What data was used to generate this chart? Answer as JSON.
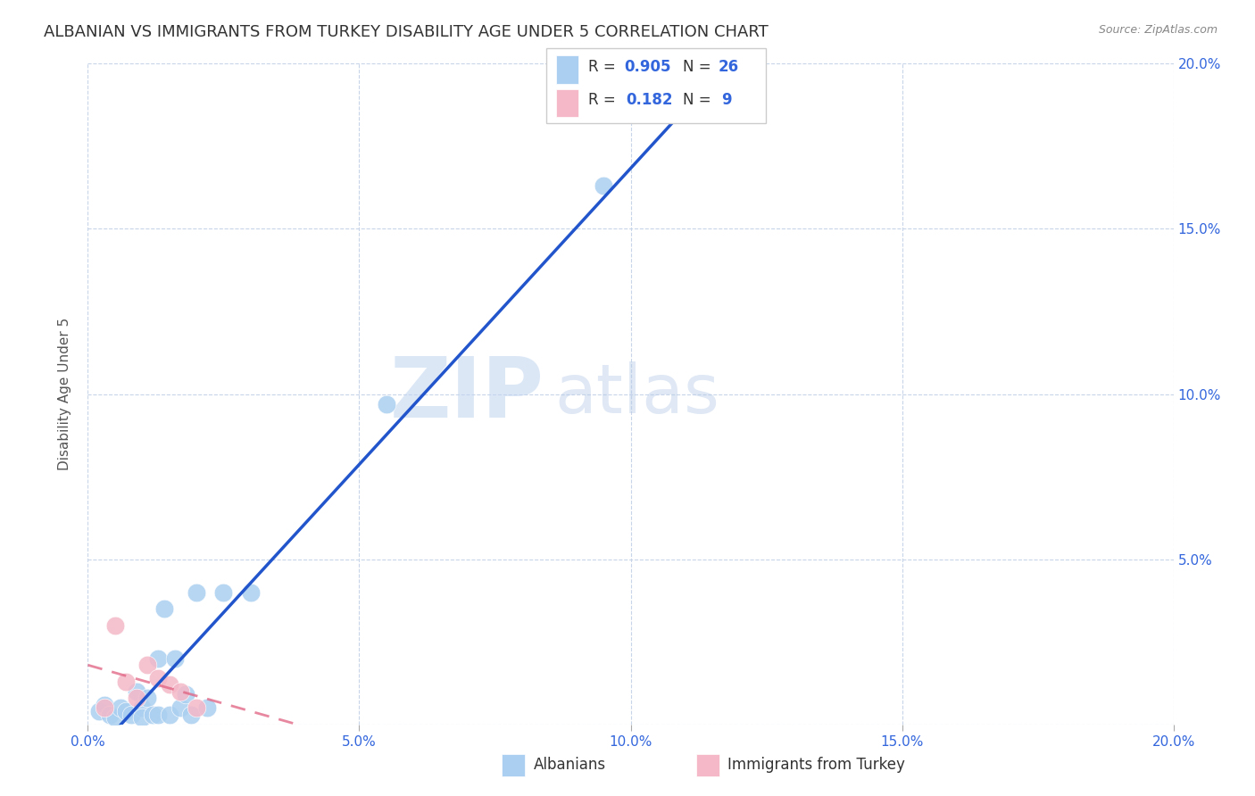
{
  "title": "ALBANIAN VS IMMIGRANTS FROM TURKEY DISABILITY AGE UNDER 5 CORRELATION CHART",
  "source": "Source: ZipAtlas.com",
  "ylabel": "Disability Age Under 5",
  "xlim": [
    0,
    0.2
  ],
  "ylim": [
    0,
    0.2
  ],
  "xticks": [
    0.0,
    0.05,
    0.1,
    0.15,
    0.2
  ],
  "yticks": [
    0.0,
    0.05,
    0.1,
    0.15,
    0.2
  ],
  "xticklabels": [
    "0.0%",
    "5.0%",
    "10.0%",
    "15.0%",
    "20.0%"
  ],
  "yticklabels": [
    "",
    "5.0%",
    "10.0%",
    "15.0%",
    "20.0%"
  ],
  "albanian_color": "#aacff0",
  "turkey_color": "#f4b8c8",
  "line_blue": "#2255cc",
  "line_pink": "#e06080",
  "watermark_zip": "ZIP",
  "watermark_atlas": "atlas",
  "albanian_x": [
    0.002,
    0.003,
    0.004,
    0.005,
    0.006,
    0.007,
    0.008,
    0.009,
    0.01,
    0.01,
    0.011,
    0.012,
    0.013,
    0.013,
    0.014,
    0.015,
    0.016,
    0.017,
    0.018,
    0.019,
    0.02,
    0.022,
    0.025,
    0.03,
    0.055,
    0.095
  ],
  "albanian_y": [
    0.004,
    0.006,
    0.003,
    0.002,
    0.005,
    0.004,
    0.003,
    0.01,
    0.005,
    0.002,
    0.008,
    0.003,
    0.02,
    0.003,
    0.035,
    0.003,
    0.02,
    0.005,
    0.009,
    0.003,
    0.04,
    0.005,
    0.04,
    0.04,
    0.097,
    0.163
  ],
  "turkey_x": [
    0.003,
    0.005,
    0.007,
    0.009,
    0.011,
    0.013,
    0.015,
    0.017,
    0.02
  ],
  "turkey_y": [
    0.005,
    0.03,
    0.013,
    0.008,
    0.018,
    0.014,
    0.012,
    0.01,
    0.005
  ],
  "background_color": "#ffffff",
  "grid_color": "#c8d4e8",
  "title_fontsize": 13,
  "axis_label_fontsize": 11,
  "tick_fontsize": 11,
  "tick_color_right": "#3366dd",
  "tick_color_bottom": "#3366dd",
  "legend_color": "#3366dd"
}
